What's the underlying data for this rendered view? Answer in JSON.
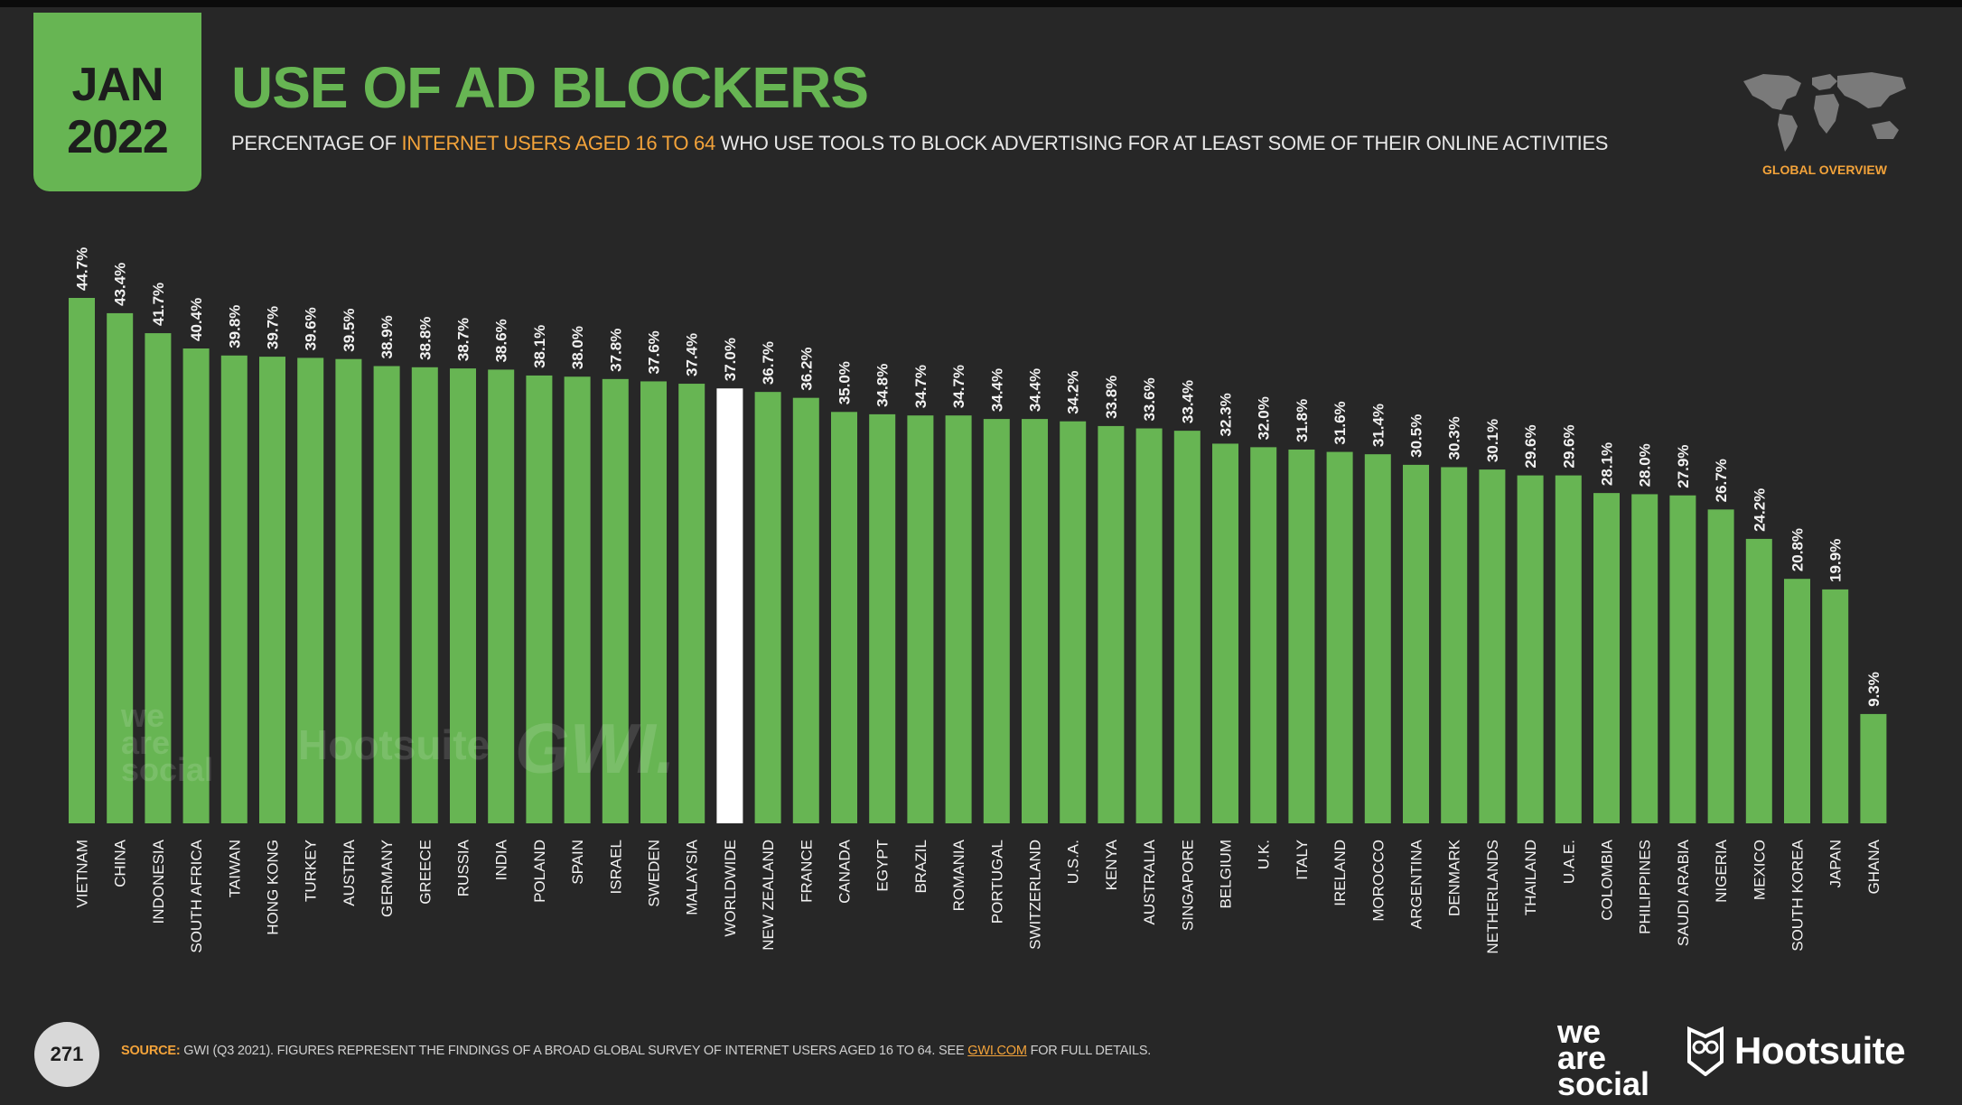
{
  "badge": {
    "month": "JAN",
    "year": "2022"
  },
  "title": "USE OF AD BLOCKERS",
  "subtitle": {
    "part1": "PERCENTAGE OF ",
    "highlight": "INTERNET USERS AGED 16 TO 64",
    "part2": " WHO USE TOOLS TO BLOCK ADVERTISING FOR AT LEAST SOME OF THEIR ONLINE ACTIVITIES"
  },
  "global_overview_label": "GLOBAL OVERVIEW",
  "page_number": "271",
  "source": {
    "label": "SOURCE:",
    "text": " GWI (Q3 2021). FIGURES REPRESENT THE FINDINGS OF A BROAD GLOBAL SURVEY OF INTERNET USERS AGED 16 TO 64. SEE ",
    "link": "GWI.COM",
    "tail": " FOR FULL DETAILS."
  },
  "logos": {
    "we_are_social": [
      "we",
      "are",
      "social"
    ],
    "hootsuite": "Hootsuite",
    "gwi": "GWI."
  },
  "colors": {
    "bar": "#67b553",
    "highlight_bar": "#ffffff",
    "accent": "#f3a33a",
    "background": "#272727"
  },
  "chart_data": {
    "type": "bar",
    "highlight_category": "WORLDWIDE",
    "categories": [
      "VIETNAM",
      "CHINA",
      "INDONESIA",
      "SOUTH AFRICA",
      "TAIWAN",
      "HONG KONG",
      "TURKEY",
      "AUSTRIA",
      "GERMANY",
      "GREECE",
      "RUSSIA",
      "INDIA",
      "POLAND",
      "SPAIN",
      "ISRAEL",
      "SWEDEN",
      "MALAYSIA",
      "WORLDWIDE",
      "NEW ZEALAND",
      "FRANCE",
      "CANADA",
      "EGYPT",
      "BRAZIL",
      "ROMANIA",
      "PORTUGAL",
      "SWITZERLAND",
      "U.S.A.",
      "KENYA",
      "AUSTRALIA",
      "SINGAPORE",
      "BELGIUM",
      "U.K.",
      "ITALY",
      "IRELAND",
      "MOROCCO",
      "ARGENTINA",
      "DENMARK",
      "NETHERLANDS",
      "THAILAND",
      "U.A.E.",
      "COLOMBIA",
      "PHILIPPINES",
      "SAUDI ARABIA",
      "NIGERIA",
      "MEXICO",
      "SOUTH KOREA",
      "JAPAN",
      "GHANA"
    ],
    "values": [
      44.7,
      43.4,
      41.7,
      40.4,
      39.8,
      39.7,
      39.6,
      39.5,
      38.9,
      38.8,
      38.7,
      38.6,
      38.1,
      38.0,
      37.8,
      37.6,
      37.4,
      37.0,
      36.7,
      36.2,
      35.0,
      34.8,
      34.7,
      34.7,
      34.4,
      34.4,
      34.2,
      33.8,
      33.6,
      33.4,
      32.3,
      32.0,
      31.8,
      31.6,
      31.4,
      30.5,
      30.3,
      30.1,
      29.6,
      29.6,
      28.1,
      28.0,
      27.9,
      26.7,
      24.2,
      20.8,
      19.9,
      9.3
    ],
    "labels": [
      "44.7%",
      "43.4%",
      "41.7%",
      "40.4%",
      "39.8%",
      "39.7%",
      "39.6%",
      "39.5%",
      "38.9%",
      "38.8%",
      "38.7%",
      "38.6%",
      "38.1%",
      "38.0%",
      "37.8%",
      "37.6%",
      "37.4%",
      "37.0%",
      "36.7%",
      "36.2%",
      "35.0%",
      "34.8%",
      "34.7%",
      "34.7%",
      "34.4%",
      "34.4%",
      "34.2%",
      "33.8%",
      "33.6%",
      "33.4%",
      "32.3%",
      "32.0%",
      "31.8%",
      "31.6%",
      "31.4%",
      "30.5%",
      "30.3%",
      "30.1%",
      "29.6%",
      "29.6%",
      "28.1%",
      "28.0%",
      "27.9%",
      "26.7%",
      "24.2%",
      "20.8%",
      "19.9%",
      "9.3%"
    ],
    "ylim": [
      0,
      44.7
    ],
    "grid": false,
    "legend": "none"
  }
}
